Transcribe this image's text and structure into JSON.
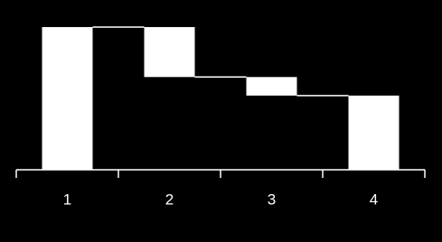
{
  "chart_data": {
    "type": "waterfall",
    "categories": [
      "1",
      "2",
      "3",
      "4"
    ],
    "values": [
      100,
      -35,
      -13,
      52
    ],
    "measure": [
      "absolute",
      "relative",
      "relative",
      "total"
    ],
    "color": "#ffffff",
    "ylim": [
      0,
      100
    ]
  }
}
